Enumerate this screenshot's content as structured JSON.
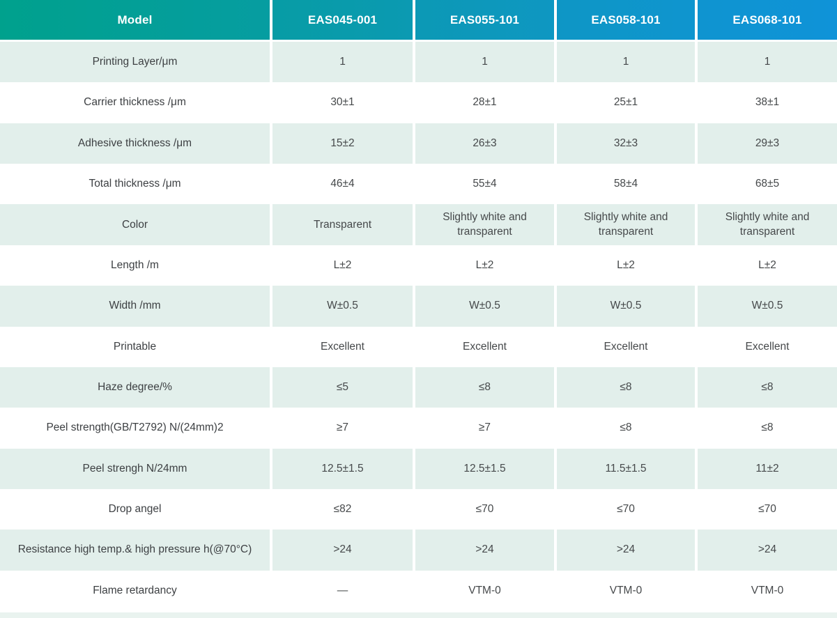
{
  "table": {
    "header": {
      "model_label": "Model",
      "columns": [
        "EAS045-001",
        "EAS055-101",
        "EAS058-101",
        "EAS068-101"
      ]
    },
    "rows": [
      {
        "label": "Printing Layer/μm",
        "values": [
          "1",
          "1",
          "1",
          "1"
        ]
      },
      {
        "label": "Carrier thickness /μm",
        "values": [
          "30±1",
          "28±1",
          "25±1",
          "38±1"
        ]
      },
      {
        "label": "Adhesive thickness /μm",
        "values": [
          "15±2",
          "26±3",
          "32±3",
          "29±3"
        ]
      },
      {
        "label": "Total thickness /μm",
        "values": [
          "46±4",
          "55±4",
          "58±4",
          "68±5"
        ]
      },
      {
        "label": "Color",
        "values": [
          "Transparent",
          "Slightly white and transparent",
          "Slightly white and transparent",
          "Slightly white and transparent"
        ]
      },
      {
        "label": "Length /m",
        "values": [
          "L±2",
          "L±2",
          "L±2",
          "L±2"
        ]
      },
      {
        "label": "Width /mm",
        "values": [
          "W±0.5",
          "W±0.5",
          "W±0.5",
          "W±0.5"
        ]
      },
      {
        "label": "Printable",
        "values": [
          "Excellent",
          "Excellent",
          "Excellent",
          "Excellent"
        ]
      },
      {
        "label": "Haze degree/%",
        "values": [
          "≤5",
          "≤8",
          "≤8",
          "≤8"
        ]
      },
      {
        "label": "Peel strength(GB/T2792)  N/(24mm)2",
        "values": [
          "≥7",
          "≥7",
          "≤8",
          "≤8"
        ]
      },
      {
        "label": "Peel strengh N/24mm",
        "values": [
          "12.5±1.5",
          "12.5±1.5",
          "11.5±1.5",
          "11±2"
        ]
      },
      {
        "label": "Drop angel",
        "values": [
          "≤82",
          "≤70",
          "≤70",
          "≤70"
        ]
      },
      {
        "label": "Resistance high temp.& high pressure h(@70°C)",
        "values": [
          ">24",
          ">24",
          ">24",
          ">24"
        ]
      },
      {
        "label": "Flame retardancy",
        "values": [
          "—",
          "VTM-0",
          "VTM-0",
          "VTM-0"
        ]
      }
    ],
    "colors": {
      "header_gradient_start": "#00a18d",
      "header_gradient_mid": "#0c9cab",
      "header_gradient_end": "#0f93d8",
      "header_text": "#ffffff",
      "row_shade": "#e2efeb",
      "bottom_strip": "#e9f3ef",
      "body_text": "#3d4043"
    }
  }
}
